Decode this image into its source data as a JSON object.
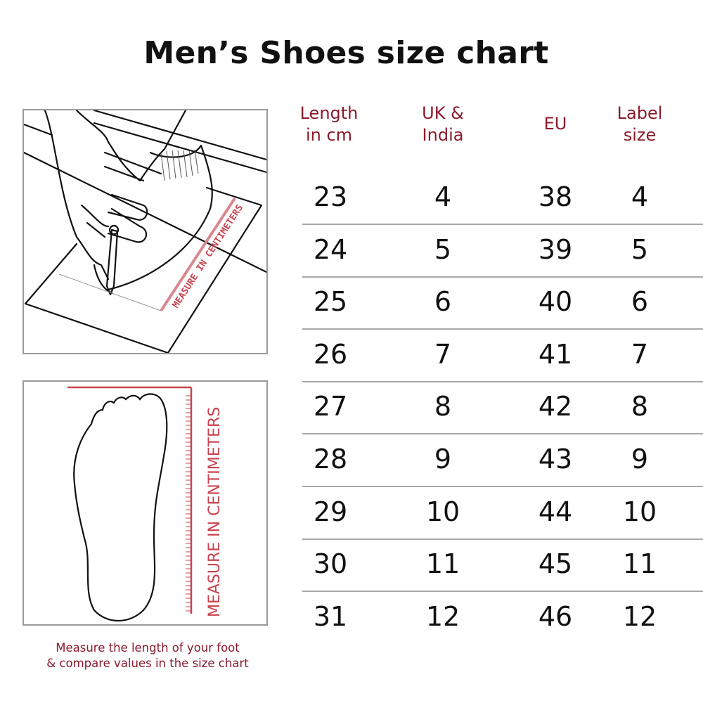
{
  "title": "Men’s Shoes size chart",
  "illustrations": {
    "top_ruler_text": "MEASURE IN CENTIMETERS",
    "side_ruler_text": "MEASURE IN CENTIMETERS"
  },
  "caption": [
    "Measure the length of your foot",
    "& compare values in the size chart"
  ],
  "colors": {
    "accent": "#8b1a2b",
    "ruler": "#c9434f",
    "text": "#111111"
  },
  "chart_data": {
    "type": "table",
    "columns": [
      [
        "Length",
        "in cm"
      ],
      [
        "UK &",
        "India"
      ],
      [
        "EU"
      ],
      [
        "Label",
        "size"
      ]
    ],
    "rows": [
      [
        "23",
        "4",
        "38",
        "4"
      ],
      [
        "24",
        "5",
        "39",
        "5"
      ],
      [
        "25",
        "6",
        "40",
        "6"
      ],
      [
        "26",
        "7",
        "41",
        "7"
      ],
      [
        "27",
        "8",
        "42",
        "8"
      ],
      [
        "28",
        "9",
        "43",
        "9"
      ],
      [
        "29",
        "10",
        "44",
        "10"
      ],
      [
        "30",
        "11",
        "45",
        "11"
      ],
      [
        "31",
        "12",
        "46",
        "12"
      ]
    ]
  }
}
